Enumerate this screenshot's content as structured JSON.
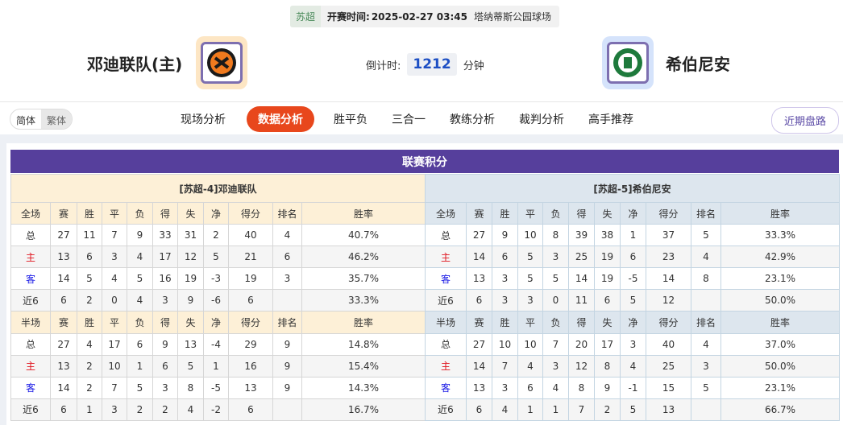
{
  "match": {
    "league": "苏超",
    "time_label": "开赛时间:",
    "time": "2025-02-27 03:45",
    "venue": "塔纳蒂斯公园球场"
  },
  "home": {
    "name": "邓迪联队(主)"
  },
  "away": {
    "name": "希伯尼安"
  },
  "countdown": {
    "label": "倒计时:",
    "value": "1212",
    "unit": "分钟"
  },
  "lang": {
    "simplified": "简体",
    "traditional": "繁体"
  },
  "tabs": [
    "现场分析",
    "数据分析",
    "胜平负",
    "三合一",
    "教练分析",
    "裁判分析",
    "高手推荐"
  ],
  "active_tab": "数据分析",
  "recent_button": "近期盘路",
  "section_title": "联赛积分",
  "colors": {
    "accent": "#e8471c",
    "header": "#563f9c",
    "home_row": "#e0141e",
    "away_row": "#1a1ae6"
  },
  "standings": {
    "columns": [
      "赛",
      "胜",
      "平",
      "负",
      "得",
      "失",
      "净",
      "得分",
      "排名",
      "胜率"
    ],
    "home": {
      "caption": "[苏超-4]邓迪联队",
      "full": {
        "label": "全场",
        "rows": [
          [
            "总",
            "27",
            "11",
            "7",
            "9",
            "33",
            "31",
            "2",
            "40",
            "4",
            "40.7%"
          ],
          [
            "主",
            "13",
            "6",
            "3",
            "4",
            "17",
            "12",
            "5",
            "21",
            "6",
            "46.2%"
          ],
          [
            "客",
            "14",
            "5",
            "4",
            "5",
            "16",
            "19",
            "-3",
            "19",
            "3",
            "35.7%"
          ],
          [
            "近6",
            "6",
            "2",
            "0",
            "4",
            "3",
            "9",
            "-6",
            "6",
            "",
            "33.3%"
          ]
        ]
      },
      "half": {
        "label": "半场",
        "rows": [
          [
            "总",
            "27",
            "4",
            "17",
            "6",
            "9",
            "13",
            "-4",
            "29",
            "9",
            "14.8%"
          ],
          [
            "主",
            "13",
            "2",
            "10",
            "1",
            "6",
            "5",
            "1",
            "16",
            "9",
            "15.4%"
          ],
          [
            "客",
            "14",
            "2",
            "7",
            "5",
            "3",
            "8",
            "-5",
            "13",
            "9",
            "14.3%"
          ],
          [
            "近6",
            "6",
            "1",
            "3",
            "2",
            "2",
            "4",
            "-2",
            "6",
            "",
            "16.7%"
          ]
        ]
      }
    },
    "away": {
      "caption": "[苏超-5]希伯尼安",
      "full": {
        "label": "全场",
        "rows": [
          [
            "总",
            "27",
            "9",
            "10",
            "8",
            "39",
            "38",
            "1",
            "37",
            "5",
            "33.3%"
          ],
          [
            "主",
            "14",
            "6",
            "5",
            "3",
            "25",
            "19",
            "6",
            "23",
            "4",
            "42.9%"
          ],
          [
            "客",
            "13",
            "3",
            "5",
            "5",
            "14",
            "19",
            "-5",
            "14",
            "8",
            "23.1%"
          ],
          [
            "近6",
            "6",
            "3",
            "3",
            "0",
            "11",
            "6",
            "5",
            "12",
            "",
            "50.0%"
          ]
        ]
      },
      "half": {
        "label": "半场",
        "rows": [
          [
            "总",
            "27",
            "10",
            "10",
            "7",
            "20",
            "17",
            "3",
            "40",
            "4",
            "37.0%"
          ],
          [
            "主",
            "14",
            "7",
            "4",
            "3",
            "12",
            "8",
            "4",
            "25",
            "3",
            "50.0%"
          ],
          [
            "客",
            "13",
            "3",
            "6",
            "4",
            "8",
            "9",
            "-1",
            "15",
            "5",
            "23.1%"
          ],
          [
            "近6",
            "6",
            "4",
            "1",
            "1",
            "7",
            "2",
            "5",
            "13",
            "",
            "66.7%"
          ]
        ]
      }
    }
  }
}
